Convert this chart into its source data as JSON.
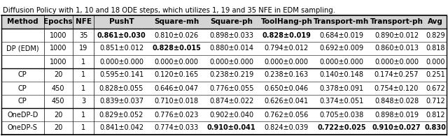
{
  "title_line1": "Diffusion Policy with 1, 10 and 18 ODE steps, which utilizes 1, 19 and 35 NFE in EDM sampling.",
  "columns": [
    "Method",
    "Epochs",
    "NFE",
    "PushT",
    "Square-mh",
    "Square-ph",
    "ToolHang-ph",
    "Transport-mh",
    "Transport-ph",
    "Avg"
  ],
  "rows": [
    {
      "method": "DP (EDM)",
      "epochs": "1000",
      "nfe": "35",
      "pusht": "0.861±0.030",
      "pusht_bold": true,
      "sq_mh": "0.810±0.026",
      "sq_mh_bold": false,
      "sq_ph": "0.898±0.033",
      "sq_ph_bold": false,
      "th_ph": "0.828±0.019",
      "th_ph_bold": true,
      "tr_mh": "0.684±0.019",
      "tr_mh_bold": false,
      "tr_ph": "0.890±0.012",
      "tr_ph_bold": false,
      "avg": "0.829",
      "avg_bold": false,
      "method_row_idx": 0
    },
    {
      "method": "DP (EDM)",
      "epochs": "1000",
      "nfe": "19",
      "pusht": "0.851±0.012",
      "pusht_bold": false,
      "sq_mh": "0.828±0.015",
      "sq_mh_bold": true,
      "sq_ph": "0.880±0.014",
      "sq_ph_bold": false,
      "th_ph": "0.794±0.012",
      "th_ph_bold": false,
      "tr_mh": "0.692±0.009",
      "tr_mh_bold": false,
      "tr_ph": "0.860±0.013",
      "tr_ph_bold": false,
      "avg": "0.818",
      "avg_bold": false,
      "method_row_idx": 1
    },
    {
      "method": "DP (EDM)",
      "epochs": "1000",
      "nfe": "1",
      "pusht": "0.000±0.000",
      "pusht_bold": false,
      "sq_mh": "0.000±0.000",
      "sq_mh_bold": false,
      "sq_ph": "0.000±0.000",
      "sq_ph_bold": false,
      "th_ph": "0.000±0.000",
      "th_ph_bold": false,
      "tr_mh": "0.000±0.000",
      "tr_mh_bold": false,
      "tr_ph": "0.000±0.000",
      "tr_ph_bold": false,
      "avg": "0.000",
      "avg_bold": false,
      "method_row_idx": 2
    },
    {
      "method": "CP",
      "epochs": "20",
      "nfe": "1",
      "pusht": "0.595±0.141",
      "pusht_bold": false,
      "sq_mh": "0.120±0.165",
      "sq_mh_bold": false,
      "sq_ph": "0.238±0.219",
      "sq_ph_bold": false,
      "th_ph": "0.238±0.163",
      "th_ph_bold": false,
      "tr_mh": "0.140±0.148",
      "tr_mh_bold": false,
      "tr_ph": "0.174±0.257",
      "tr_ph_bold": false,
      "avg": "0.251",
      "avg_bold": false,
      "method_row_idx": 0
    },
    {
      "method": "CP",
      "epochs": "450",
      "nfe": "1",
      "pusht": "0.828±0.055",
      "pusht_bold": false,
      "sq_mh": "0.646±0.047",
      "sq_mh_bold": false,
      "sq_ph": "0.776±0.055",
      "sq_ph_bold": false,
      "th_ph": "0.650±0.046",
      "th_ph_bold": false,
      "tr_mh": "0.378±0.091",
      "tr_mh_bold": false,
      "tr_ph": "0.754±0.120",
      "tr_ph_bold": false,
      "avg": "0.672",
      "avg_bold": false,
      "method_row_idx": 0
    },
    {
      "method": "CP",
      "epochs": "450",
      "nfe": "3",
      "pusht": "0.839±0.037",
      "pusht_bold": false,
      "sq_mh": "0.710±0.018",
      "sq_mh_bold": false,
      "sq_ph": "0.874±0.022",
      "sq_ph_bold": false,
      "th_ph": "0.626±0.041",
      "th_ph_bold": false,
      "tr_mh": "0.374±0.051",
      "tr_mh_bold": false,
      "tr_ph": "0.848±0.028",
      "tr_ph_bold": false,
      "avg": "0.712",
      "avg_bold": false,
      "method_row_idx": 0
    },
    {
      "method": "OneDP-D",
      "epochs": "20",
      "nfe": "1",
      "pusht": "0.829±0.052",
      "pusht_bold": false,
      "sq_mh": "0.776±0.023",
      "sq_mh_bold": false,
      "sq_ph": "0.902±0.040",
      "sq_ph_bold": false,
      "th_ph": "0.762±0.056",
      "th_ph_bold": false,
      "tr_mh": "0.705±0.038",
      "tr_mh_bold": false,
      "tr_ph": "0.898±0.019",
      "tr_ph_bold": false,
      "avg": "0.812",
      "avg_bold": false,
      "method_row_idx": 0
    },
    {
      "method": "OneDP-S",
      "epochs": "20",
      "nfe": "1",
      "pusht": "0.841±0.042",
      "pusht_bold": false,
      "sq_mh": "0.774±0.033",
      "sq_mh_bold": false,
      "sq_ph": "0.910±0.041",
      "sq_ph_bold": true,
      "th_ph": "0.824±0.039",
      "th_ph_bold": false,
      "tr_mh": "0.722±0.025",
      "tr_mh_bold": true,
      "tr_ph": "0.910±0.027",
      "tr_ph_bold": true,
      "avg": "0.830",
      "avg_bold": true,
      "method_row_idx": 0
    }
  ],
  "font_size": 7.0,
  "header_font_size": 7.5,
  "title_font_size": 7.2,
  "text_color": "#000000",
  "header_bg": "#d4d4d4",
  "row_bg": "#ffffff"
}
